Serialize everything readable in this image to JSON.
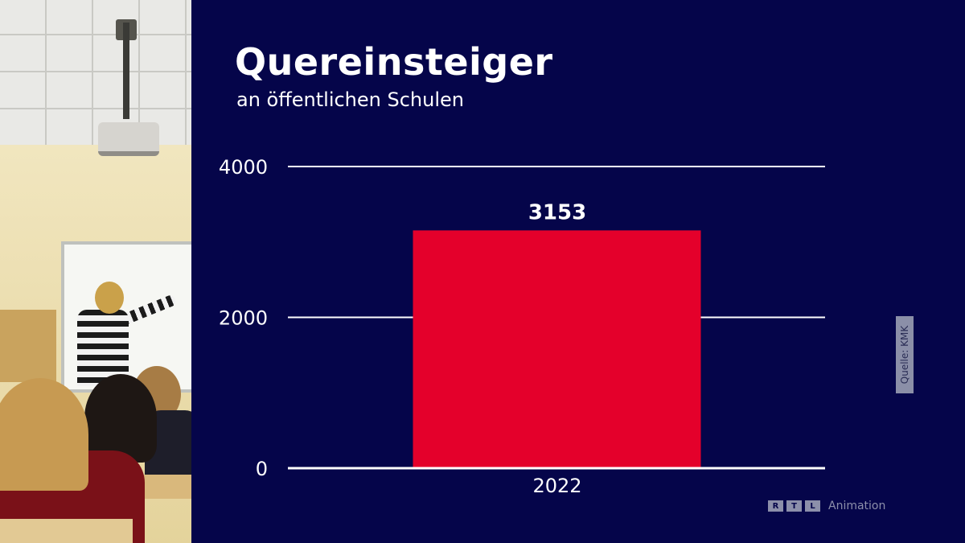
{
  "title": "Quereinsteiger",
  "subtitle": "an öffentlichen Schulen",
  "source_label": "Quelle: KMK",
  "branding": {
    "logo_letters": [
      "R",
      "T",
      "L"
    ],
    "text": "Animation"
  },
  "colors": {
    "background": "#05054a",
    "bar": "#e4002b",
    "text": "#ffffff",
    "grid": "#ffffff"
  },
  "chart_data": {
    "type": "bar",
    "title": "Quereinsteiger",
    "subtitle": "an öffentlichen Schulen",
    "categories": [
      "2022"
    ],
    "values": [
      3153
    ],
    "data_labels": [
      "3153"
    ],
    "ylim": [
      0,
      4000
    ],
    "yticks": [
      0,
      2000,
      4000
    ],
    "ytick_labels": [
      "0",
      "2000",
      "4000"
    ],
    "xlabel": "",
    "ylabel": "",
    "grid": true
  }
}
